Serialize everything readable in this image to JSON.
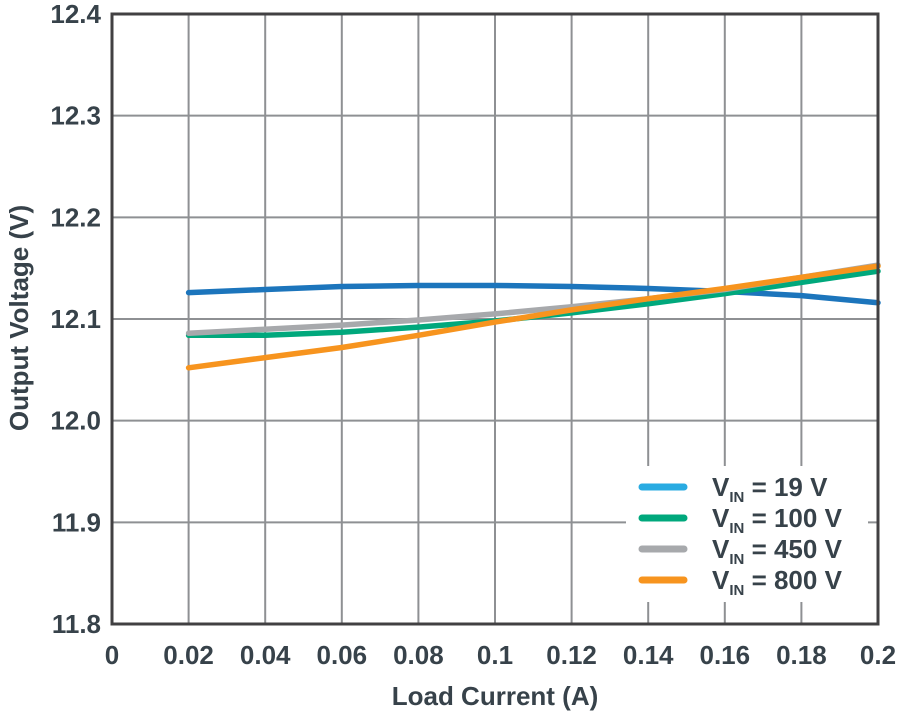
{
  "chart_data": {
    "type": "line",
    "title": "",
    "xlabel": "Load Current (A)",
    "ylabel": "Output Voltage (V)",
    "xlim": [
      0,
      0.2
    ],
    "ylim": [
      11.8,
      12.4
    ],
    "xticks": [
      0,
      0.02,
      0.04,
      0.06,
      0.08,
      0.1,
      0.12,
      0.14,
      0.16,
      0.18,
      0.2
    ],
    "xtick_labels": [
      "0",
      "0.02",
      "0.04",
      "0.06",
      "0.08",
      "0.1",
      "0.12",
      "0.14",
      "0.16",
      "0.18",
      "0.2"
    ],
    "yticks": [
      11.8,
      11.9,
      12.0,
      12.1,
      12.2,
      12.3,
      12.4
    ],
    "ytick_labels": [
      "11.8",
      "11.9",
      "12.0",
      "12.1",
      "12.2",
      "12.3",
      "12.4"
    ],
    "grid": true,
    "legend_position": "lower right",
    "x": [
      0.02,
      0.04,
      0.06,
      0.08,
      0.1,
      0.12,
      0.14,
      0.16,
      0.18,
      0.2
    ],
    "series": [
      {
        "id": "vin-19",
        "label_main": "V",
        "label_sub": "IN",
        "label_rest": " = 19 V",
        "color": "#1C75BC",
        "legend_color": "#29ABE2",
        "values": [
          12.126,
          12.129,
          12.132,
          12.133,
          12.133,
          12.132,
          12.13,
          12.127,
          12.123,
          12.116
        ]
      },
      {
        "id": "vin-100",
        "label_main": "V",
        "label_sub": "IN",
        "label_rest": " = 100 V",
        "color": "#00A87C",
        "legend_color": "#00A87C",
        "values": [
          12.084,
          12.084,
          12.087,
          12.092,
          12.098,
          12.106,
          12.115,
          12.125,
          12.136,
          12.147
        ]
      },
      {
        "id": "vin-450",
        "label_main": "V",
        "label_sub": "IN",
        "label_rest": " = 450 V",
        "color": "#A7A9AC",
        "legend_color": "#A7A9AC",
        "values": [
          12.086,
          12.09,
          12.094,
          12.099,
          12.105,
          12.112,
          12.12,
          12.129,
          12.141,
          12.153
        ]
      },
      {
        "id": "vin-800",
        "label_main": "V",
        "label_sub": "IN",
        "label_rest": " = 800 V",
        "color": "#F7941E",
        "legend_color": "#F7941E",
        "values": [
          12.052,
          12.062,
          12.072,
          12.084,
          12.097,
          12.109,
          12.12,
          12.13,
          12.141,
          12.152
        ]
      }
    ],
    "colors": {
      "text": "#37424A",
      "grid": "#8E9093",
      "border": "#414042",
      "background": "#FFFFFF"
    }
  }
}
